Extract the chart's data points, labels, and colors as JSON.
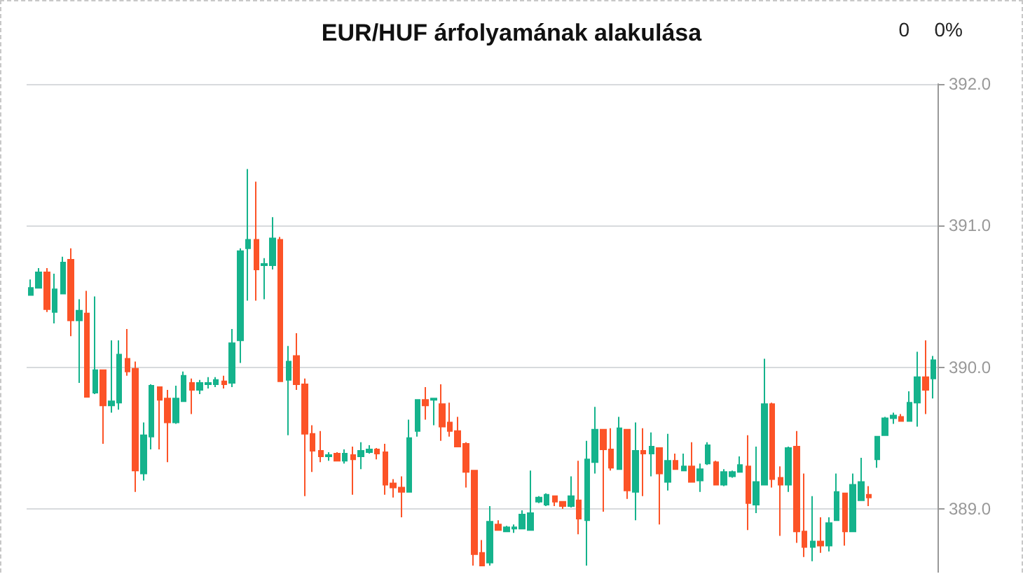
{
  "chart_data": {
    "type": "candlestick",
    "title": "EUR/HUF árfolyamának alakulása",
    "annotations": [
      "0",
      "0%"
    ],
    "categories": [
      null,
      null,
      null,
      null,
      null,
      null,
      null,
      null,
      null,
      null,
      null,
      null,
      null,
      null,
      null,
      null,
      null,
      null,
      null,
      null,
      null,
      null,
      null,
      null,
      null,
      null,
      null,
      null,
      null,
      null,
      null,
      null,
      null,
      null,
      null,
      null,
      null,
      null,
      null,
      null,
      null,
      null,
      null,
      null,
      null,
      null,
      null,
      null,
      null,
      null,
      null,
      null,
      null,
      null,
      null,
      null,
      null,
      null,
      null,
      null,
      null,
      null,
      null,
      null,
      null,
      null,
      null,
      null,
      null,
      null,
      null,
      null,
      null,
      null,
      null,
      null,
      null,
      null,
      null,
      null,
      null,
      null,
      null,
      null,
      null,
      null,
      null,
      null,
      null,
      null,
      null,
      null,
      null,
      null,
      null,
      null,
      null,
      null,
      null,
      null,
      null,
      null,
      null,
      null,
      null,
      null,
      null,
      null,
      null,
      null,
      null,
      null,
      null
    ],
    "ohlc": [
      [
        390.51,
        390.62,
        390.51,
        390.56
      ],
      [
        390.56,
        390.7,
        390.56,
        390.67
      ],
      [
        390.67,
        390.7,
        390.39,
        390.41
      ],
      [
        390.39,
        390.66,
        390.31,
        390.55
      ],
      [
        390.52,
        390.78,
        390.52,
        390.74
      ],
      [
        390.76,
        390.84,
        390.22,
        390.33
      ],
      [
        390.33,
        390.48,
        389.89,
        390.4
      ],
      [
        390.38,
        390.54,
        389.79,
        389.79
      ],
      [
        389.82,
        390.5,
        389.81,
        389.98
      ],
      [
        389.98,
        389.98,
        389.46,
        389.73
      ],
      [
        389.73,
        390.19,
        389.68,
        389.76
      ],
      [
        389.75,
        390.19,
        389.7,
        390.09
      ],
      [
        390.06,
        390.27,
        389.94,
        389.97
      ],
      [
        389.99,
        390.04,
        389.12,
        389.27
      ],
      [
        389.25,
        389.61,
        389.2,
        389.52
      ],
      [
        389.51,
        389.88,
        389.42,
        389.87
      ],
      [
        389.86,
        389.86,
        389.42,
        389.77
      ],
      [
        389.78,
        389.84,
        389.33,
        389.61
      ],
      [
        389.61,
        389.87,
        389.6,
        389.78
      ],
      [
        389.76,
        389.97,
        389.76,
        389.94
      ],
      [
        389.89,
        389.92,
        389.67,
        389.84
      ],
      [
        389.84,
        389.91,
        389.81,
        389.89
      ],
      [
        389.88,
        389.93,
        389.85,
        389.89
      ],
      [
        389.88,
        389.93,
        389.86,
        389.91
      ],
      [
        389.9,
        389.94,
        389.85,
        389.88
      ],
      [
        389.89,
        390.27,
        389.86,
        390.17
      ],
      [
        390.19,
        390.84,
        390.03,
        390.82
      ],
      [
        390.84,
        391.4,
        390.47,
        390.9
      ],
      [
        390.9,
        391.31,
        390.47,
        390.69
      ],
      [
        390.72,
        390.77,
        390.48,
        390.73
      ],
      [
        390.72,
        391.06,
        390.69,
        390.91
      ],
      [
        390.9,
        390.92,
        389.9,
        389.9
      ],
      [
        389.91,
        390.15,
        389.52,
        390.04
      ],
      [
        390.08,
        390.24,
        389.84,
        389.88
      ],
      [
        389.88,
        389.92,
        389.09,
        389.53
      ],
      [
        389.53,
        389.59,
        389.26,
        389.41
      ],
      [
        389.41,
        389.55,
        389.33,
        389.37
      ],
      [
        389.37,
        389.4,
        389.34,
        389.38
      ],
      [
        389.39,
        389.4,
        389.34,
        389.34
      ],
      [
        389.34,
        389.42,
        389.32,
        389.39
      ],
      [
        389.38,
        389.44,
        389.1,
        389.35
      ],
      [
        389.37,
        389.47,
        389.28,
        389.41
      ],
      [
        389.4,
        389.45,
        389.39,
        389.42
      ],
      [
        389.42,
        389.43,
        389.35,
        389.39
      ],
      [
        389.4,
        389.46,
        389.1,
        389.17
      ],
      [
        389.18,
        389.21,
        389.08,
        389.15
      ],
      [
        389.15,
        389.23,
        388.94,
        389.12
      ],
      [
        389.12,
        389.63,
        389.12,
        389.5
      ],
      [
        389.55,
        389.77,
        389.51,
        389.77
      ],
      [
        389.77,
        389.86,
        389.63,
        389.73
      ],
      [
        389.77,
        389.78,
        389.59,
        389.78
      ],
      [
        389.74,
        389.88,
        389.48,
        389.58
      ],
      [
        389.61,
        389.75,
        389.51,
        389.55
      ],
      [
        389.55,
        389.65,
        389.44,
        389.44
      ],
      [
        389.46,
        389.47,
        389.15,
        389.26
      ],
      [
        389.27,
        389.27,
        388.6,
        388.68
      ],
      [
        388.69,
        388.78,
        388.6,
        388.6
      ],
      [
        388.62,
        389.02,
        388.6,
        388.91
      ],
      [
        388.89,
        388.92,
        388.85,
        388.85
      ],
      [
        388.84,
        388.88,
        388.84,
        388.87
      ],
      [
        388.86,
        388.89,
        388.83,
        388.87
      ],
      [
        388.86,
        388.99,
        388.86,
        388.96
      ],
      [
        388.85,
        389.27,
        388.85,
        388.97
      ],
      [
        389.05,
        389.09,
        389.04,
        389.08
      ],
      [
        389.03,
        389.11,
        389.02,
        389.1
      ],
      [
        389.09,
        389.09,
        389.02,
        389.05
      ],
      [
        389.05,
        389.05,
        389.0,
        389.02
      ],
      [
        389.02,
        389.23,
        389.01,
        389.09
      ],
      [
        389.06,
        389.34,
        388.82,
        388.93
      ],
      [
        388.92,
        389.48,
        388.6,
        389.35
      ],
      [
        389.33,
        389.72,
        389.25,
        389.56
      ],
      [
        389.56,
        389.56,
        388.98,
        389.42
      ],
      [
        389.42,
        389.57,
        389.27,
        389.29
      ],
      [
        389.28,
        389.65,
        389.28,
        389.57
      ],
      [
        389.56,
        389.56,
        389.07,
        389.13
      ],
      [
        389.12,
        389.61,
        388.92,
        389.41
      ],
      [
        389.41,
        389.57,
        389.09,
        389.39
      ],
      [
        389.39,
        389.54,
        389.23,
        389.44
      ],
      [
        389.43,
        389.43,
        388.89,
        389.25
      ],
      [
        389.19,
        389.53,
        389.13,
        389.34
      ],
      [
        389.34,
        389.39,
        389.28,
        389.28
      ],
      [
        389.27,
        389.39,
        389.27,
        389.3
      ],
      [
        389.3,
        389.47,
        389.19,
        389.19
      ],
      [
        389.2,
        389.32,
        389.12,
        389.28
      ],
      [
        389.32,
        389.47,
        389.31,
        389.45
      ],
      [
        389.33,
        389.34,
        389.17,
        389.17
      ],
      [
        389.17,
        389.28,
        389.16,
        389.26
      ],
      [
        389.23,
        389.27,
        389.22,
        389.26
      ],
      [
        389.26,
        389.37,
        389.26,
        389.31
      ],
      [
        389.3,
        389.52,
        388.85,
        389.04
      ],
      [
        389.03,
        389.44,
        388.97,
        389.19
      ],
      [
        389.17,
        390.06,
        389.17,
        389.74
      ],
      [
        389.74,
        389.75,
        389.15,
        389.21
      ],
      [
        389.22,
        389.3,
        388.81,
        389.17
      ],
      [
        389.17,
        389.44,
        389.12,
        389.43
      ],
      [
        389.44,
        389.55,
        388.76,
        388.84
      ],
      [
        388.84,
        389.25,
        388.66,
        388.73
      ],
      [
        388.73,
        389.09,
        388.63,
        388.77
      ],
      [
        388.77,
        388.94,
        388.69,
        388.74
      ],
      [
        388.74,
        388.94,
        388.7,
        388.9
      ],
      [
        388.92,
        389.25,
        388.92,
        389.12
      ],
      [
        389.11,
        389.11,
        388.74,
        388.84
      ],
      [
        388.84,
        389.25,
        388.84,
        389.17
      ],
      [
        389.06,
        389.36,
        389.06,
        389.19
      ],
      [
        389.1,
        389.16,
        389.02,
        389.08
      ],
      [
        389.35,
        389.51,
        389.29,
        389.51
      ],
      [
        389.52,
        389.65,
        389.52,
        389.64
      ],
      [
        389.64,
        389.68,
        389.6,
        389.66
      ],
      [
        389.65,
        389.67,
        389.62,
        389.62
      ],
      [
        389.62,
        389.83,
        389.62,
        389.75
      ],
      [
        389.75,
        390.11,
        389.58,
        389.93
      ],
      [
        389.93,
        390.19,
        389.67,
        389.84
      ],
      [
        389.92,
        390.08,
        389.78,
        390.05
      ]
    ],
    "colors": [
      "#15b38c",
      "#15b38c",
      "#fc5327",
      "#15b38c",
      "#15b38c",
      "#fc5327",
      "#15b38c",
      "#fc5327",
      "#15b38c",
      "#fc5327",
      "#15b38c",
      "#15b38c",
      "#fc5327",
      "#fc5327",
      "#15b38c",
      "#15b38c",
      "#fc5327",
      "#fc5327",
      "#15b38c",
      "#15b38c",
      "#fc5327",
      "#15b38c",
      "#15b38c",
      "#15b38c",
      "#fc5327",
      "#15b38c",
      "#15b38c",
      "#15b38c",
      "#fc5327",
      "#15b38c",
      "#15b38c",
      "#fc5327",
      "#15b38c",
      "#fc5327",
      "#fc5327",
      "#fc5327",
      "#fc5327",
      "#15b38c",
      "#fc5327",
      "#15b38c",
      "#fc5327",
      "#15b38c",
      "#15b38c",
      "#fc5327",
      "#fc5327",
      "#fc5327",
      "#fc5327",
      "#15b38c",
      "#15b38c",
      "#fc5327",
      "#15b38c",
      "#fc5327",
      "#fc5327",
      "#fc5327",
      "#fc5327",
      "#fc5327",
      "#fc5327",
      "#15b38c",
      "#fc5327",
      "#15b38c",
      "#15b38c",
      "#15b38c",
      "#15b38c",
      "#15b38c",
      "#15b38c",
      "#fc5327",
      "#fc5327",
      "#15b38c",
      "#fc5327",
      "#15b38c",
      "#15b38c",
      "#fc5327",
      "#fc5327",
      "#15b38c",
      "#fc5327",
      "#15b38c",
      "#fc5327",
      "#15b38c",
      "#fc5327",
      "#15b38c",
      "#fc5327",
      "#15b38c",
      "#fc5327",
      "#15b38c",
      "#15b38c",
      "#fc5327",
      "#15b38c",
      "#15b38c",
      "#15b38c",
      "#fc5327",
      "#15b38c",
      "#15b38c",
      "#fc5327",
      "#fc5327",
      "#15b38c",
      "#fc5327",
      "#fc5327",
      "#15b38c",
      "#fc5327",
      "#15b38c",
      "#15b38c",
      "#fc5327",
      "#15b38c",
      "#15b38c",
      "#fc5327",
      "#15b38c",
      "#15b38c",
      "#15b38c",
      "#fc5327",
      "#15b38c",
      "#15b38c",
      "#fc5327",
      "#15b38c"
    ],
    "ylim": [
      388.55,
      392.0
    ],
    "yticks": [
      {
        "value": 389,
        "label": "389.0"
      },
      {
        "value": 390,
        "label": "390.0"
      },
      {
        "value": 391,
        "label": "391.0"
      },
      {
        "value": 392,
        "label": "392.0"
      }
    ],
    "grid": "y",
    "tick_labels": "y"
  }
}
